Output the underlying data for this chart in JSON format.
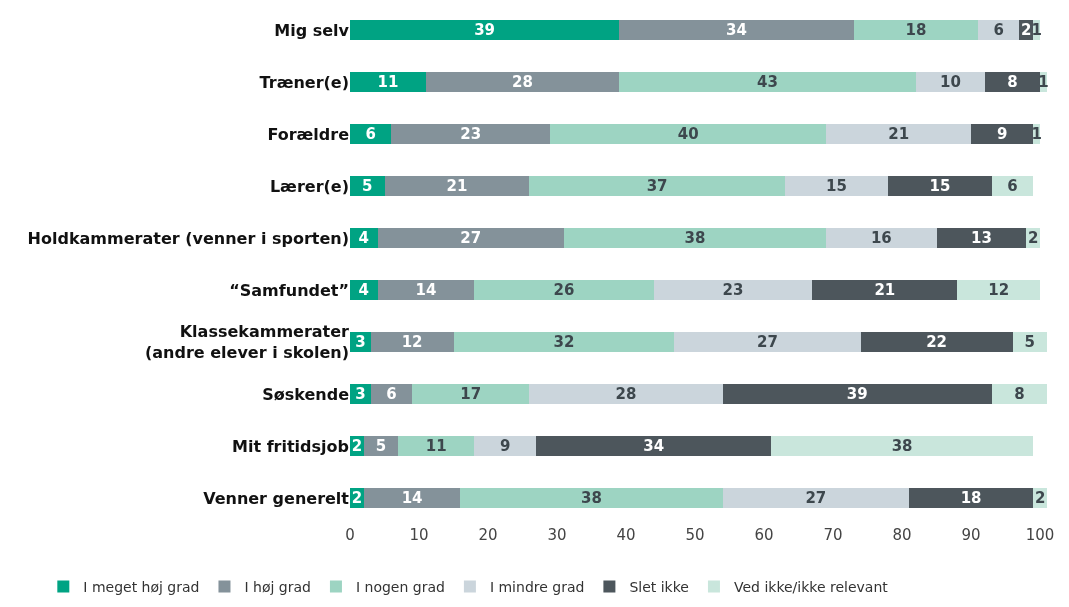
{
  "chart_data": {
    "type": "bar",
    "orientation": "horizontal",
    "stacked": true,
    "data_labels": true,
    "legend": "bottom",
    "grid": false,
    "categories": [
      "Mig selv",
      "Træner(e)",
      "Forældre",
      "Lærer(e)",
      "Holdkammerater (venner i sporten)",
      "“Samfundet”",
      "Klassekammerater\n(andre elever i skolen)",
      "Søskende",
      "Mit fritidsjob",
      "Venner generelt"
    ],
    "xlim": [
      0,
      101
    ],
    "xticks": [
      0,
      10,
      20,
      30,
      40,
      50,
      60,
      70,
      80,
      90,
      100
    ],
    "series": [
      {
        "name": "I meget høj grad",
        "color": "#00a383",
        "values": [
          39,
          11,
          6,
          5,
          4,
          4,
          3,
          3,
          2,
          2
        ]
      },
      {
        "name": "I høj grad",
        "color": "#84929a",
        "values": [
          34,
          28,
          23,
          21,
          27,
          14,
          12,
          6,
          5,
          14
        ]
      },
      {
        "name": "I nogen grad",
        "color": "#9dd4c2",
        "values": [
          18,
          43,
          40,
          37,
          38,
          26,
          32,
          17,
          11,
          38
        ]
      },
      {
        "name": "I mindre grad",
        "color": "#cbd5dc",
        "values": [
          6,
          10,
          21,
          15,
          16,
          23,
          27,
          28,
          9,
          27
        ]
      },
      {
        "name": "Slet ikke",
        "color": "#4d565c",
        "values": [
          2,
          8,
          9,
          15,
          13,
          21,
          22,
          39,
          34,
          18
        ]
      },
      {
        "name": "Ved ikke/ikke relevant",
        "color": "#c9e6dc",
        "values": [
          1,
          1,
          1,
          6,
          2,
          12,
          5,
          8,
          38,
          2
        ]
      }
    ]
  }
}
